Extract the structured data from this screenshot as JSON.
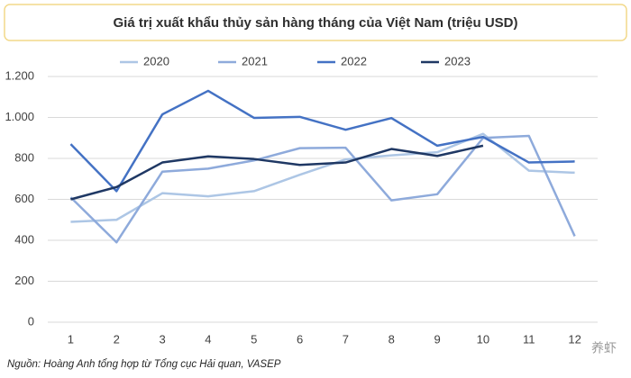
{
  "chart_data": {
    "type": "line",
    "title": "Giá trị xuất khẩu thủy sản hàng tháng của Việt Nam (triệu USD)",
    "categories": [
      "1",
      "2",
      "3",
      "4",
      "5",
      "6",
      "7",
      "8",
      "9",
      "10",
      "11",
      "12"
    ],
    "series": [
      {
        "name": "2020",
        "color": "#adc6e5",
        "values": [
          490,
          500,
          630,
          615,
          640,
          720,
          795,
          815,
          830,
          920,
          740,
          730
        ]
      },
      {
        "name": "2021",
        "color": "#8eaadb",
        "values": [
          610,
          390,
          735,
          750,
          790,
          850,
          852,
          595,
          625,
          900,
          910,
          420
        ]
      },
      {
        "name": "2022",
        "color": "#4472c4",
        "values": [
          870,
          640,
          1015,
          1130,
          998,
          1003,
          940,
          997,
          862,
          905,
          780,
          785
        ]
      },
      {
        "name": "2023",
        "color": "#1f3864",
        "values": [
          600,
          660,
          780,
          810,
          797,
          768,
          780,
          846,
          812,
          862,
          null,
          null
        ]
      }
    ],
    "ylim": [
      0,
      1200
    ],
    "yticks": [
      0,
      200,
      400,
      600,
      800,
      {
        "value": 1000,
        "label": "1.000"
      },
      {
        "value": 1200,
        "label": "1.200"
      }
    ],
    "grid": true,
    "legend": "top",
    "source": "Nguồn: Hoàng Anh tổng hợp từ Tổng cục Hải quan, VASEP",
    "watermark": "养虾"
  }
}
